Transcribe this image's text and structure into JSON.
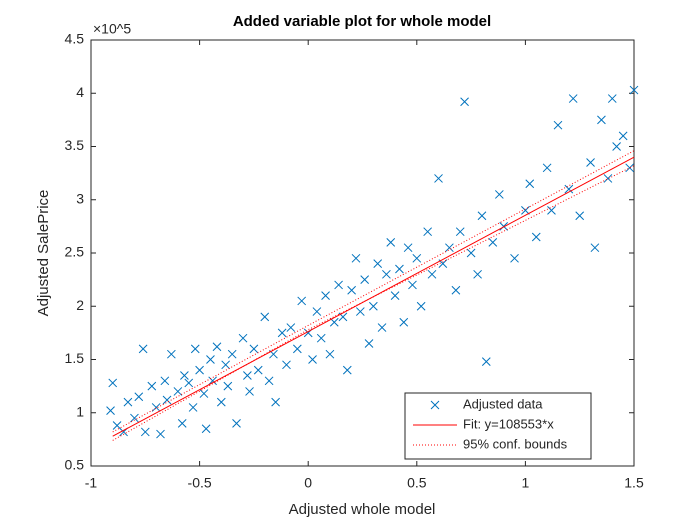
{
  "chart_data": {
    "type": "scatter",
    "title": "Added variable plot for whole model",
    "xlabel": "Adjusted whole model",
    "ylabel": "Adjusted SalePrice",
    "y_exponent_label": "×10^5",
    "xlim": [
      -1,
      1.5
    ],
    "xticks": [
      -1,
      -0.5,
      0,
      0.5,
      1,
      1.5
    ],
    "ylim": [
      0.5,
      4.5
    ],
    "yticks": [
      0.5,
      1,
      1.5,
      2,
      2.5,
      3,
      3.5,
      4,
      4.5
    ],
    "legend_position": "lower right",
    "series": [
      {
        "name": "Adjusted data",
        "color": "#0072bd",
        "marker": "x",
        "x": [
          -0.91,
          -0.9,
          -0.88,
          -0.85,
          -0.83,
          -0.8,
          -0.78,
          -0.76,
          -0.75,
          -0.72,
          -0.7,
          -0.68,
          -0.66,
          -0.65,
          -0.63,
          -0.6,
          -0.58,
          -0.57,
          -0.55,
          -0.53,
          -0.52,
          -0.5,
          -0.48,
          -0.47,
          -0.45,
          -0.44,
          -0.42,
          -0.4,
          -0.38,
          -0.37,
          -0.35,
          -0.33,
          -0.3,
          -0.28,
          -0.27,
          -0.25,
          -0.23,
          -0.2,
          -0.18,
          -0.16,
          -0.15,
          -0.12,
          -0.1,
          -0.08,
          -0.05,
          -0.03,
          0,
          0.02,
          0.04,
          0.06,
          0.08,
          0.1,
          0.12,
          0.14,
          0.16,
          0.18,
          0.2,
          0.22,
          0.24,
          0.26,
          0.28,
          0.3,
          0.32,
          0.34,
          0.36,
          0.38,
          0.4,
          0.42,
          0.44,
          0.46,
          0.48,
          0.5,
          0.52,
          0.55,
          0.57,
          0.6,
          0.62,
          0.65,
          0.68,
          0.7,
          0.72,
          0.75,
          0.78,
          0.8,
          0.82,
          0.85,
          0.88,
          0.9,
          0.95,
          1,
          1.02,
          1.05,
          1.1,
          1.12,
          1.15,
          1.2,
          1.22,
          1.25,
          1.3,
          1.32,
          1.35,
          1.38,
          1.4,
          1.42,
          1.45,
          1.48,
          1.5
        ],
        "values": [
          1.02,
          1.28,
          0.88,
          0.82,
          1.1,
          0.95,
          1.15,
          1.6,
          0.82,
          1.25,
          1.05,
          0.8,
          1.3,
          1.12,
          1.55,
          1.2,
          0.9,
          1.35,
          1.28,
          1.05,
          1.6,
          1.4,
          1.18,
          0.85,
          1.5,
          1.3,
          1.62,
          1.1,
          1.45,
          1.25,
          1.55,
          0.9,
          1.7,
          1.35,
          1.2,
          1.6,
          1.4,
          1.9,
          1.3,
          1.55,
          1.1,
          1.75,
          1.45,
          1.8,
          1.6,
          2.05,
          1.75,
          1.5,
          1.95,
          1.7,
          2.1,
          1.55,
          1.85,
          2.2,
          1.9,
          1.4,
          2.15,
          2.45,
          1.95,
          2.25,
          1.65,
          2.0,
          2.4,
          1.8,
          2.3,
          2.6,
          2.1,
          2.35,
          1.85,
          2.55,
          2.2,
          2.45,
          2.0,
          2.7,
          2.3,
          3.2,
          2.4,
          2.55,
          2.15,
          2.7,
          3.92,
          2.5,
          2.3,
          2.85,
          1.48,
          2.6,
          3.05,
          2.75,
          2.45,
          2.9,
          3.15,
          2.65,
          3.3,
          2.9,
          3.7,
          3.1,
          3.95,
          2.85,
          3.35,
          2.55,
          3.75,
          3.2,
          3.95,
          3.5,
          3.6,
          3.3,
          4.03
        ]
      },
      {
        "name": "Fit: y=108553*x",
        "color": "#ff0000",
        "line": "solid",
        "x": [
          -0.9,
          1.5
        ],
        "values": [
          0.78,
          3.4
        ]
      },
      {
        "name": "95% conf. bounds",
        "color": "#ff0000",
        "line": "dotted",
        "x": [
          -0.9,
          0,
          1.5
        ],
        "values": [
          0.82,
          1.82,
          3.46
        ],
        "lower": [
          0.74,
          1.78,
          3.32
        ]
      }
    ]
  }
}
